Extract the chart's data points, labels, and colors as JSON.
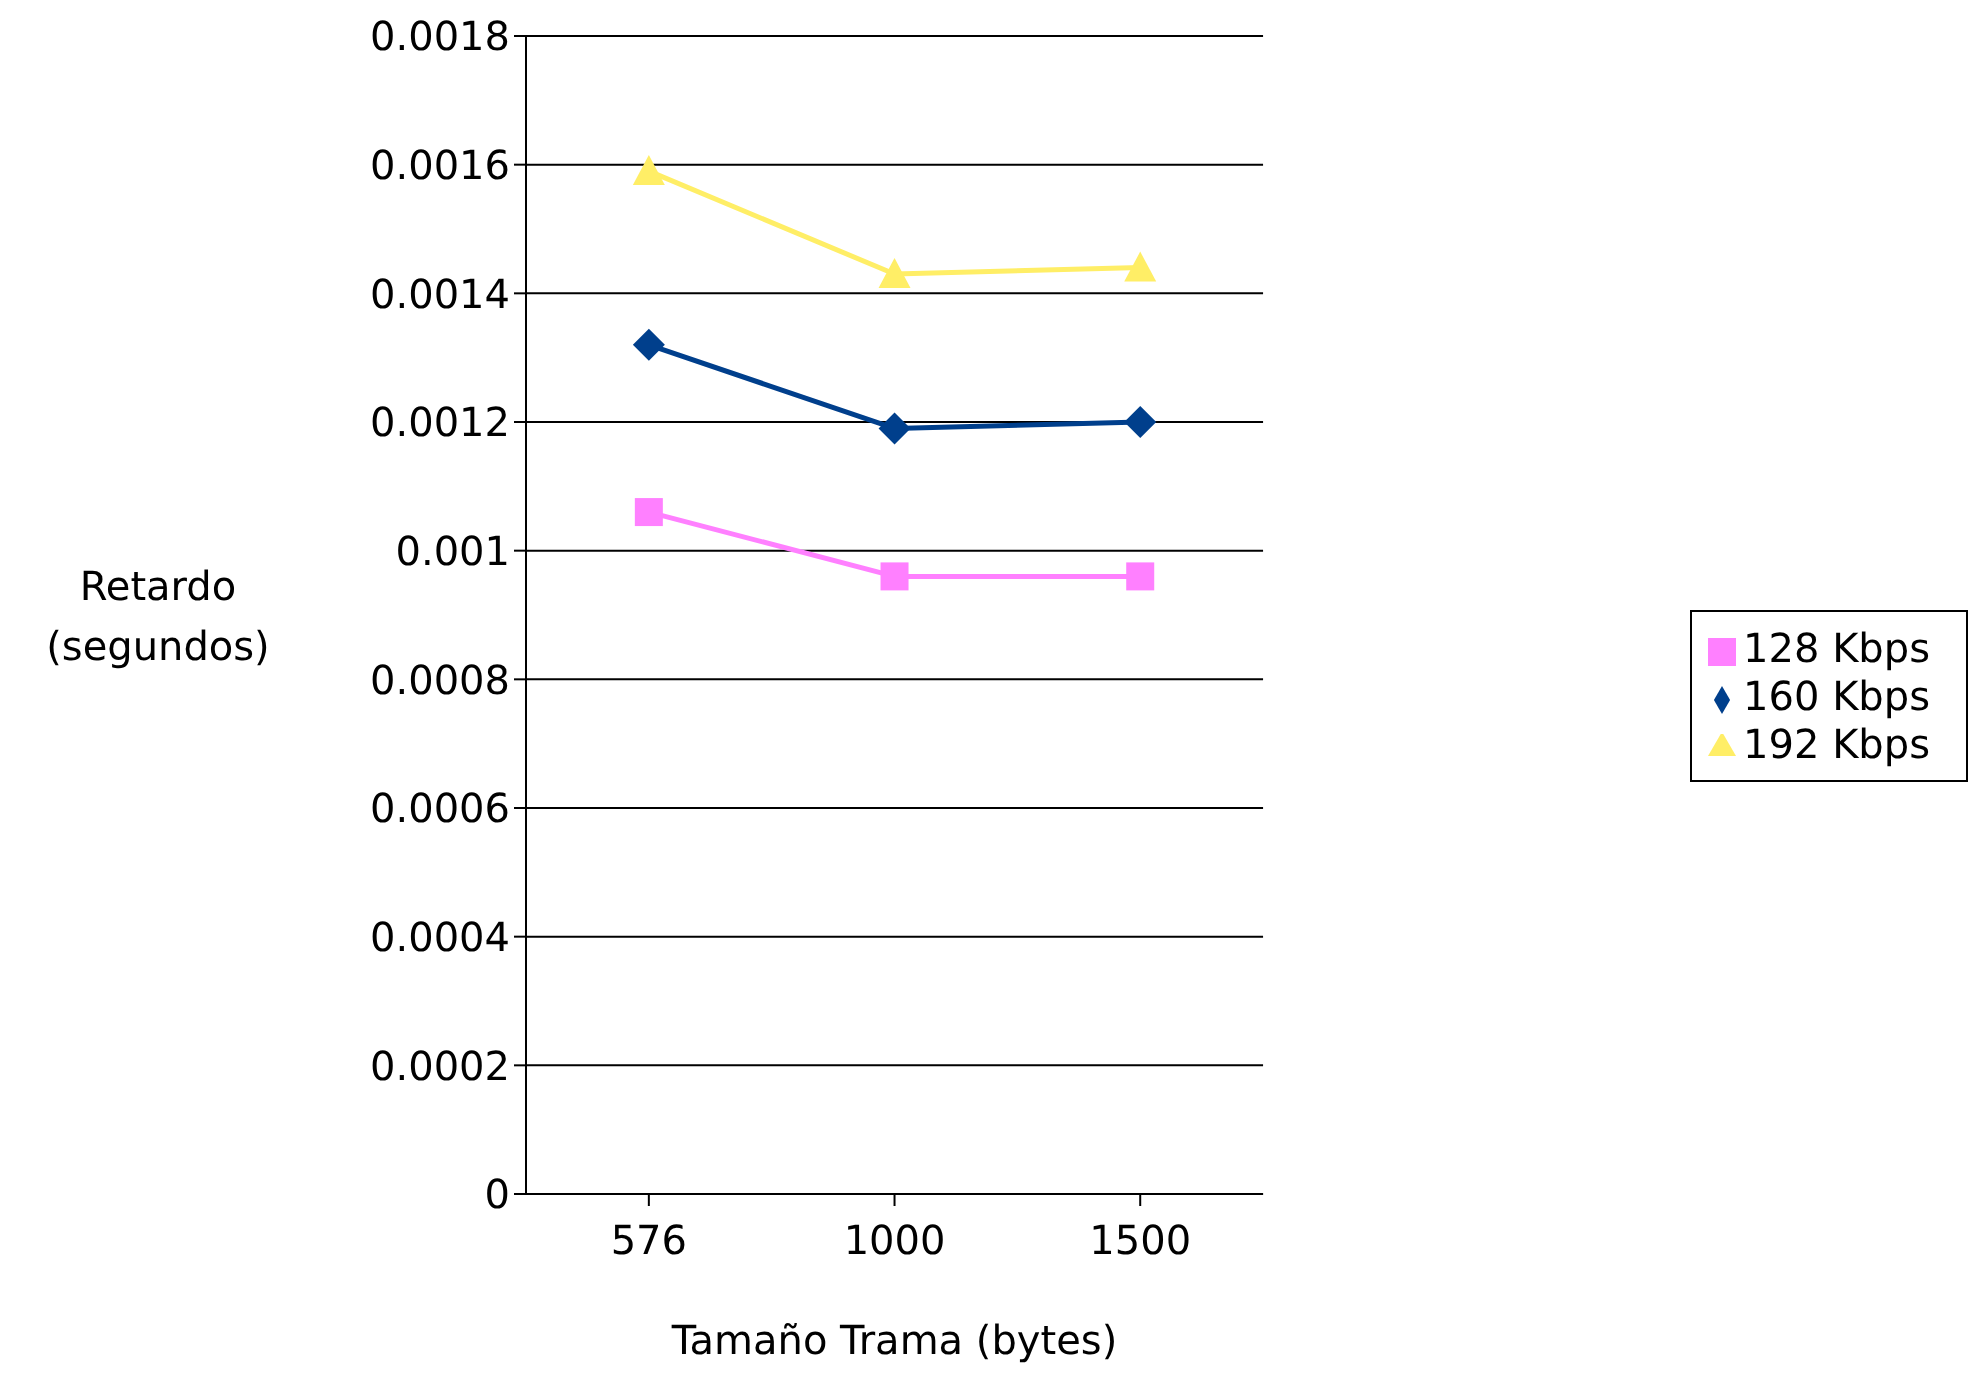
{
  "chart_data": {
    "type": "line",
    "xlabel": "Tamaño Trama (bytes)",
    "ylabel": "Retardo (segundos)",
    "categories": [
      "576",
      "1000",
      "1500"
    ],
    "series": [
      {
        "name": "128 Kbps",
        "color": "#ff80ff",
        "marker": "square",
        "values": [
          0.00106,
          0.00096,
          0.00096
        ]
      },
      {
        "name": "160 Kbps",
        "color": "#003f8c",
        "marker": "diamond",
        "values": [
          0.00132,
          0.00119,
          0.0012
        ]
      },
      {
        "name": "192 Kbps",
        "color": "#ffee66",
        "marker": "triangle",
        "values": [
          0.00159,
          0.00143,
          0.00144
        ]
      }
    ],
    "ylim": [
      0,
      0.0018
    ],
    "yticks": [
      0,
      0.0002,
      0.0004,
      0.0006,
      0.0008,
      0.001,
      0.0012,
      0.0014,
      0.0016,
      0.0018
    ],
    "grid": "y",
    "legend": "right"
  }
}
